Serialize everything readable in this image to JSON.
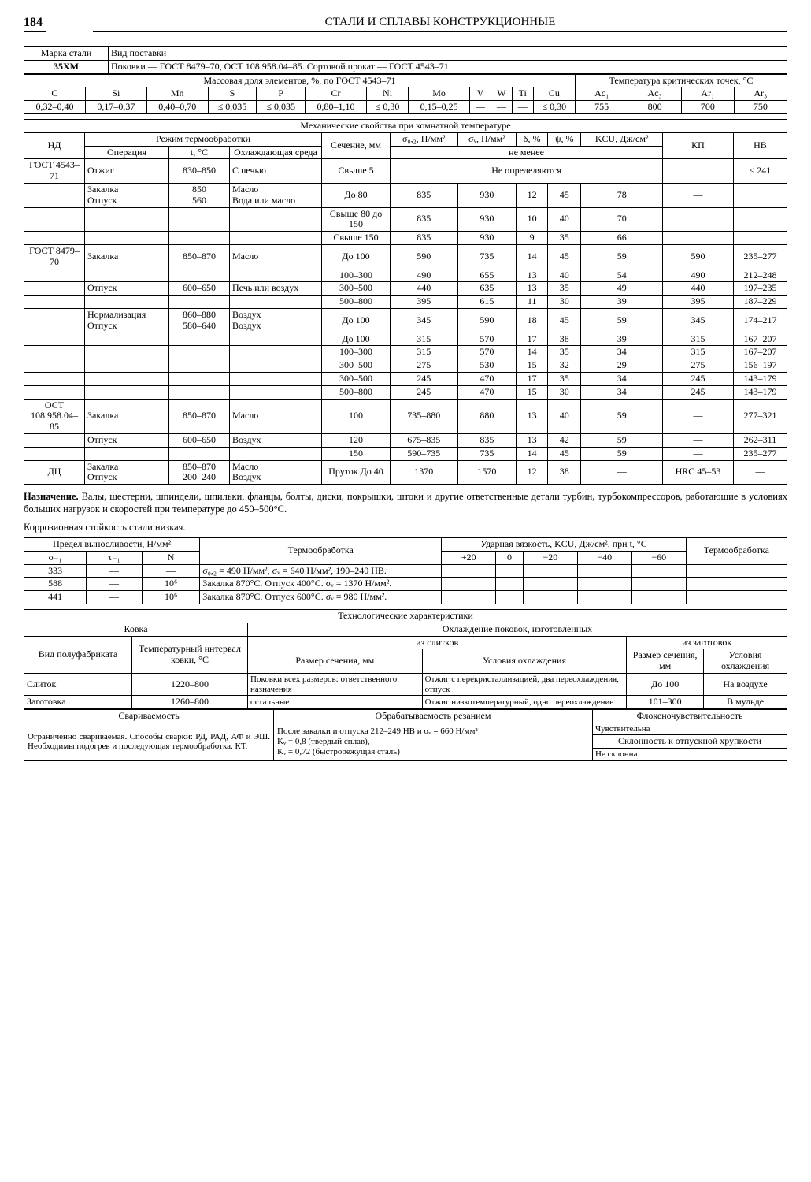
{
  "page_number": "184",
  "running_head": "СТАЛИ И СПЛАВЫ КОНСТРУКЦИОННЫЕ",
  "header": {
    "grade_label": "Марка стали",
    "supply_label": "Вид поставки",
    "grade": "35ХМ",
    "supply": "Поковки — ГОСТ 8479–70, ОСТ 108.958.04–85. Сортовой прокат — ГОСТ 4543–71."
  },
  "comp": {
    "title": "Массовая доля элементов, %, по ГОСТ 4543–71",
    "crit_title": "Температура критических точек, °С",
    "cols": [
      "C",
      "Si",
      "Mn",
      "S",
      "P",
      "Cr",
      "Ni",
      "Mo",
      "V",
      "W",
      "Ti",
      "Cu",
      "Ac₁",
      "Ac₃",
      "Ar₁",
      "Ar₃"
    ],
    "vals": [
      "0,32–0,40",
      "0,17–0,37",
      "0,40–0,70",
      "≤ 0,035",
      "≤ 0,035",
      "0,80–1,10",
      "≤ 0,30",
      "0,15–0,25",
      "—",
      "—",
      "—",
      "≤ 0,30",
      "755",
      "800",
      "700",
      "750"
    ]
  },
  "mech": {
    "title": "Механические свойства при комнатной температуре",
    "head": {
      "nd": "НД",
      "regime": "Режим термообработки",
      "op": "Операция",
      "t": "t, °С",
      "cool": "Охлаждающая среда",
      "sect": "Сечение, мм",
      "s02": "σ₀,₂, Н/мм²",
      "sv": "σᵥ, Н/мм²",
      "d": "δ, %",
      "psi": "ψ, %",
      "kcu": "KCU, Дж/см²",
      "kp": "КП",
      "hb": "HB",
      "notless": "не менее",
      "nodef": "Не определяются"
    },
    "rows": [
      {
        "nd": "ГОСТ 4543–71",
        "op": "Отжиг",
        "t": "830–850",
        "cool": "С печью",
        "sect": "Свыше 5",
        "s02": "",
        "sv": "",
        "d": "",
        "psi": "",
        "kcu": "",
        "kp": "",
        "hb": "≤ 241",
        "nodef": true
      },
      {
        "nd": "",
        "op": "Закалка\nОтпуск",
        "t": "850\n560",
        "cool": "Масло\nВода или масло",
        "sect": "До 80",
        "s02": "835",
        "sv": "930",
        "d": "12",
        "psi": "45",
        "kcu": "78",
        "kp": "—",
        "hb": ""
      },
      {
        "sect": "Свыше 80 до 150",
        "s02": "835",
        "sv": "930",
        "d": "10",
        "psi": "40",
        "kcu": "70"
      },
      {
        "sect": "Свыше 150",
        "s02": "835",
        "sv": "930",
        "d": "9",
        "psi": "35",
        "kcu": "66"
      },
      {
        "nd": "ГОСТ 8479–70",
        "op": "Закалка",
        "t": "850–870",
        "cool": "Масло",
        "sect": "До 100",
        "s02": "590",
        "sv": "735",
        "d": "14",
        "psi": "45",
        "kcu": "59",
        "kp": "590",
        "hb": "235–277"
      },
      {
        "sect": "100–300",
        "s02": "490",
        "sv": "655",
        "d": "13",
        "psi": "40",
        "kcu": "54",
        "kp": "490",
        "hb": "212–248"
      },
      {
        "op": "Отпуск",
        "t": "600–650",
        "cool": "Печь или воздух",
        "sect": "300–500",
        "s02": "440",
        "sv": "635",
        "d": "13",
        "psi": "35",
        "kcu": "49",
        "kp": "440",
        "hb": "197–235"
      },
      {
        "sect": "500–800",
        "s02": "395",
        "sv": "615",
        "d": "11",
        "psi": "30",
        "kcu": "39",
        "kp": "395",
        "hb": "187–229"
      },
      {
        "op": "Нормализация\nОтпуск",
        "t": "860–880\n580–640",
        "cool": "Воздух\nВоздух",
        "sect": "До 100",
        "s02": "345",
        "sv": "590",
        "d": "18",
        "psi": "45",
        "kcu": "59",
        "kp": "345",
        "hb": "174–217"
      },
      {
        "sect": "До 100",
        "s02": "315",
        "sv": "570",
        "d": "17",
        "psi": "38",
        "kcu": "39",
        "kp": "315",
        "hb": "167–207"
      },
      {
        "sect": "100–300",
        "s02": "315",
        "sv": "570",
        "d": "14",
        "psi": "35",
        "kcu": "34",
        "kp": "315",
        "hb": "167–207"
      },
      {
        "sect": "300–500",
        "s02": "275",
        "sv": "530",
        "d": "15",
        "psi": "32",
        "kcu": "29",
        "kp": "275",
        "hb": "156–197"
      },
      {
        "sect": "300–500",
        "s02": "245",
        "sv": "470",
        "d": "17",
        "psi": "35",
        "kcu": "34",
        "kp": "245",
        "hb": "143–179"
      },
      {
        "sect": "500–800",
        "s02": "245",
        "sv": "470",
        "d": "15",
        "psi": "30",
        "kcu": "34",
        "kp": "245",
        "hb": "143–179"
      },
      {
        "nd": "ОСТ 108.958.04–85",
        "op": "Закалка",
        "t": "850–870",
        "cool": "Масло",
        "sect": "100",
        "s02": "735–880",
        "sv": "880",
        "d": "13",
        "psi": "40",
        "kcu": "59",
        "kp": "—",
        "hb": "277–321"
      },
      {
        "op": "Отпуск",
        "t": "600–650",
        "cool": "Воздух",
        "sect": "120",
        "s02": "675–835",
        "sv": "835",
        "d": "13",
        "psi": "42",
        "kcu": "59",
        "kp": "—",
        "hb": "262–311"
      },
      {
        "sect": "150",
        "s02": "590–735",
        "sv": "735",
        "d": "14",
        "psi": "45",
        "kcu": "59",
        "kp": "—",
        "hb": "235–277"
      },
      {
        "nd": "ДЦ",
        "op": "Закалка\nОтпуск",
        "t": "850–870\n200–240",
        "cool": "Масло\nВоздух",
        "sect": "Пруток До 40",
        "s02": "1370",
        "sv": "1570",
        "d": "12",
        "psi": "38",
        "kcu": "—",
        "kp": "HRC 45–53",
        "hb": "—"
      }
    ]
  },
  "purpose": {
    "label": "Назначение.",
    "text": " Валы, шестерни, шпиндели, шпильки, фланцы, болты, диски, покрышки, штоки и другие ответственные детали турбин, турбокомпрессоров, работающие в условиях больших нагрузок и скоростей при температуре до 450–500°С.",
    "extra": "Коррозионная стойкость стали низкая."
  },
  "fatigue": {
    "head": {
      "title": "Предел выносливости, Н/мм²",
      "s1": "σ₋₁",
      "t1": "τ₋₁",
      "n": "N",
      "treat": "Термообработка",
      "kcu_title": "Ударная вязкость, KCU, Дж/см², при t, °С",
      "cols": [
        "+20",
        "0",
        "−20",
        "−40",
        "−60"
      ],
      "treat2": "Термообработка"
    },
    "rows": [
      {
        "s1": "333",
        "t1": "—",
        "n": "—",
        "treat": "σ₀,₂ = 490 Н/мм², σᵥ = 640 Н/мм², 190–240 НВ."
      },
      {
        "s1": "588",
        "t1": "—",
        "n": "10⁶",
        "treat": "Закалка 870°С. Отпуск 400°С. σᵥ = 1370 Н/мм²."
      },
      {
        "s1": "441",
        "t1": "—",
        "n": "10⁶",
        "treat": "Закалка 870°С. Отпуск 600°С. σᵥ = 980 Н/мм²."
      }
    ]
  },
  "tech": {
    "title": "Технологические характеристики",
    "forge": "Ковка",
    "cooling_title": "Охлаждение поковок, изготовленных",
    "from_ingot": "из слитков",
    "from_billet": "из заготовок",
    "type": "Вид полуфабриката",
    "range": "Температурный интервал ковки, °С",
    "size": "Размер сечения, мм",
    "cond": "Условия охлаждения",
    "size2": "Размер сечения, мм",
    "cond2": "Условия охлаждения",
    "rows": [
      {
        "type": "Слиток",
        "range": "1220–800",
        "size": "Поковки всех размеров: ответственного назначения",
        "cond": "Отжиг с перекристаллизацией, два переохлаждения, отпуск",
        "size2": "До 100",
        "cond2": "На воздухе"
      },
      {
        "type": "Заготовка",
        "range": "1260–800",
        "size": "остальные",
        "cond": "Отжиг низкотемпературный, одно переохлаждение",
        "size2": "101–300",
        "cond2": "В мульде"
      }
    ],
    "weld": {
      "title": "Свариваемость",
      "text": "Ограниченно свариваемая. Способы сварки: РД, РАД, АФ и ЭШ. Необходимы подогрев и последующая термообработка. КТ."
    },
    "mach": {
      "title": "Обрабатываемость резанием",
      "text": "После закалки и отпуска 212–249 НВ и σᵥ = 660 Н/мм²\nKᵥ = 0,8 (твердый сплав),\nKᵥ = 0,72 (быстрорежущая сталь)"
    },
    "flake": {
      "title": "Флокеночувствительность",
      "text": "Чувствительна"
    },
    "temper": {
      "title": "Склонность к отпускной хрупкости",
      "text": "Не склонна"
    }
  }
}
